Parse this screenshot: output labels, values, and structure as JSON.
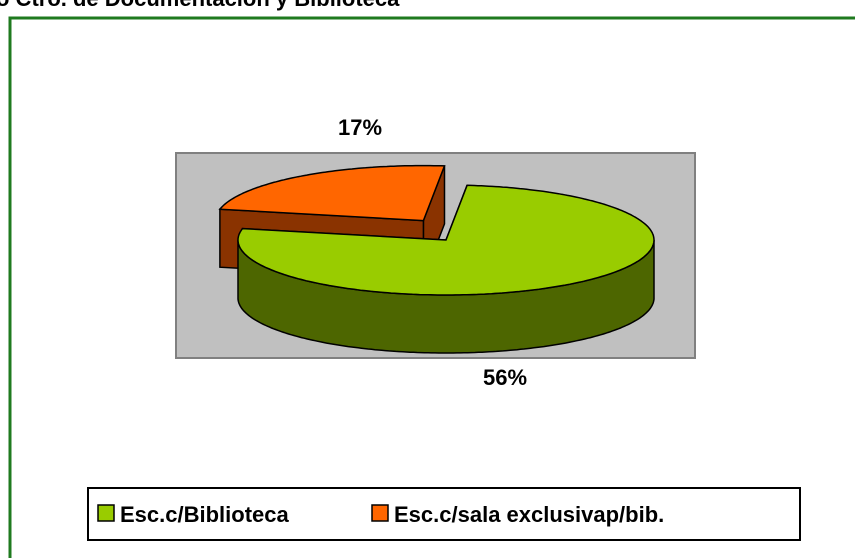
{
  "chart_data": {
    "type": "pie",
    "title": "o Ctro. de Documentación y Biblioteca",
    "categories": [
      "Esc.c/Biblioteca",
      "Esc.c/sala exclusivap/bib."
    ],
    "values": [
      56,
      17
    ],
    "value_labels": [
      "56%",
      "17%"
    ],
    "colors": [
      "#99cc00",
      "#ff6600"
    ],
    "side_colors": [
      "#4d6600",
      "#8a3300"
    ]
  }
}
